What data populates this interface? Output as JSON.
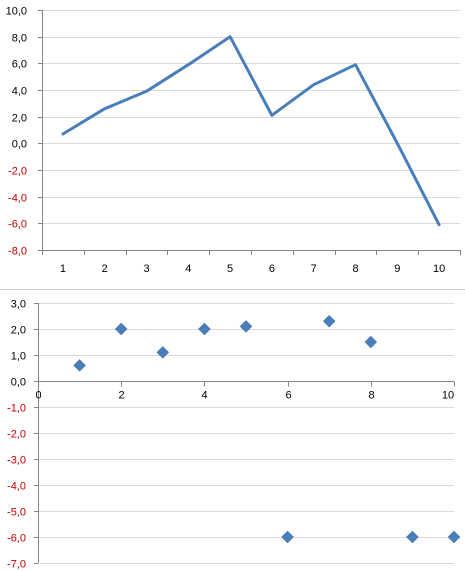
{
  "chart_data": [
    {
      "type": "line",
      "categories": [
        "1",
        "2",
        "3",
        "4",
        "5",
        "6",
        "7",
        "8",
        "9",
        "10"
      ],
      "series": [
        {
          "values": [
            0.7,
            2.6,
            3.9,
            5.9,
            8.0,
            2.1,
            4.4,
            5.9,
            0.0,
            -6.1
          ],
          "color": "#4a7ebb"
        }
      ],
      "title": "",
      "xlabel": "",
      "ylabel": "",
      "ylim": [
        -8,
        10
      ],
      "ytick_step": 2,
      "yticks": [
        "10,0",
        "8,0",
        "6,0",
        "4,0",
        "2,0",
        "0,0",
        "-2,0",
        "-4,0",
        "-6,0",
        "-8,0"
      ],
      "grid": "horizontal",
      "positive_label_color": "#000000",
      "negative_label_color": "#c00000",
      "legend": "none"
    },
    {
      "type": "scatter",
      "x": [
        1,
        2,
        3,
        4,
        5,
        6,
        7,
        8,
        9,
        10
      ],
      "series": [
        {
          "values": [
            0.6,
            2.0,
            1.1,
            2.0,
            2.1,
            -6.0,
            2.3,
            1.5,
            -6.0,
            -6.0
          ],
          "color": "#4a7ebb",
          "marker": "diamond"
        }
      ],
      "title": "",
      "xlabel": "",
      "ylabel": "",
      "xlim": [
        0,
        10
      ],
      "xticks": [
        "0",
        "2",
        "4",
        "6",
        "8",
        "10"
      ],
      "xtick_step": 2,
      "ylim": [
        -7,
        3
      ],
      "ytick_step": 1,
      "yticks": [
        "3,0",
        "2,0",
        "1,0",
        "0,0",
        "-1,0",
        "-2,0",
        "-3,0",
        "-4,0",
        "-5,0",
        "-6,0",
        "-7,0"
      ],
      "grid": "horizontal",
      "positive_label_color": "#000000",
      "negative_label_color": "#c00000",
      "legend": "none"
    }
  ]
}
